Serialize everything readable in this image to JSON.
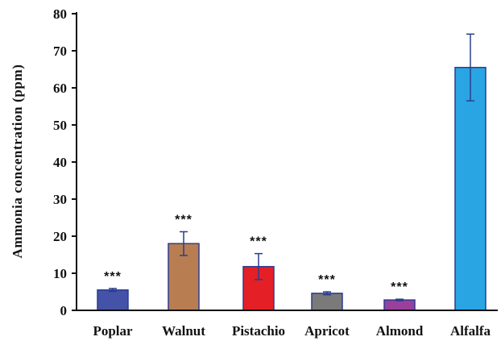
{
  "chart_data": {
    "type": "bar",
    "title": "",
    "xlabel": "",
    "ylabel": "Ammonia  concentration  (ppm)",
    "ylim": [
      0,
      80
    ],
    "yticks": [
      0,
      10,
      20,
      30,
      40,
      50,
      60,
      70,
      80
    ],
    "grid": false,
    "categories": [
      "Poplar",
      "Walnut",
      "Pistachio",
      "Apricot",
      "Almond",
      "Alfalfa"
    ],
    "values": [
      5.5,
      18,
      11.8,
      4.6,
      2.8,
      65.5
    ],
    "errors": [
      0.4,
      3.2,
      3.5,
      0.4,
      0.2,
      9
    ],
    "annotations": [
      "***",
      "***",
      "***",
      "***",
      "***",
      ""
    ],
    "colors": [
      "#4452a8",
      "#b97d52",
      "#e41f26",
      "#7a7a7a",
      "#9b3f9d",
      "#2aa5e3"
    ],
    "edge_color": "#2b3d8f",
    "error_color": "#2b3d8f"
  }
}
